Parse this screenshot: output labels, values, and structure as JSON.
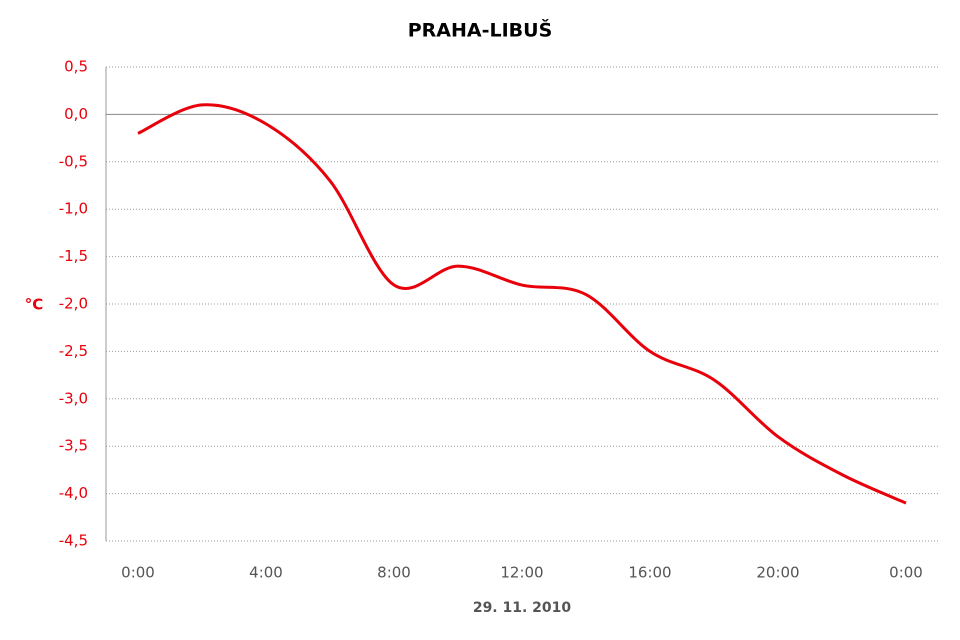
{
  "chart_data": {
    "type": "line",
    "title": "PRAHA-LIBUŠ",
    "x_label": "29. 11. 2010",
    "y_label": "°C",
    "categories": [
      "0:00",
      null,
      "4:00",
      null,
      "8:00",
      null,
      "12:00",
      null,
      "16:00",
      null,
      "20:00",
      null,
      "0:00"
    ],
    "series": [
      {
        "name": "PRAHA-LIBUŠ",
        "color": "#e8000b",
        "values": [
          -0.2,
          0.1,
          -0.1,
          -0.7,
          -1.8,
          -1.6,
          -1.8,
          -1.9,
          -2.5,
          -2.8,
          -3.4,
          -3.8,
          -4.1
        ]
      }
    ],
    "ylim": [
      -4.5,
      0.5
    ],
    "yticks": [
      {
        "value": 0.5,
        "label": "0,5"
      },
      {
        "value": 0,
        "label": "0,0"
      },
      {
        "value": -0.5,
        "label": "-0,5"
      },
      {
        "value": -1,
        "label": "-1,0"
      },
      {
        "value": -1.5,
        "label": "-1,5"
      },
      {
        "value": -2,
        "label": "-2,0"
      },
      {
        "value": -2.5,
        "label": "-2,5"
      },
      {
        "value": -3,
        "label": "-3,0"
      },
      {
        "value": -3.5,
        "label": "-3,5"
      },
      {
        "value": -4,
        "label": "-4,0"
      },
      {
        "value": -4.5,
        "label": "-4,5"
      }
    ],
    "grid": true
  }
}
